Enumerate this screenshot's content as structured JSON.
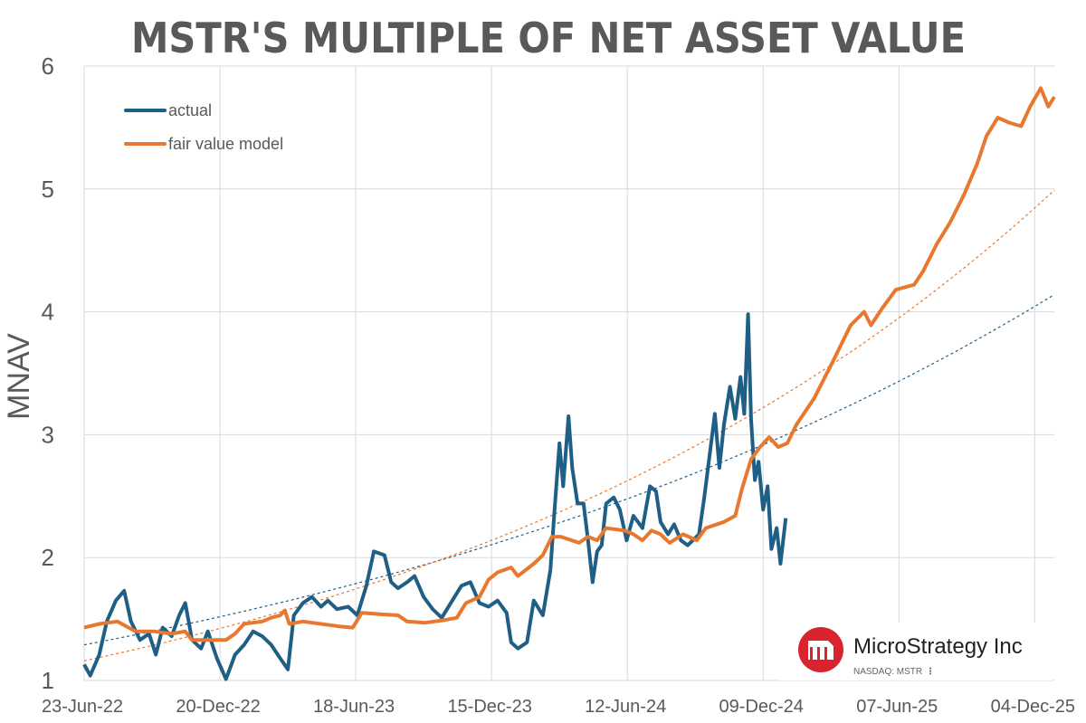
{
  "chart_data": {
    "type": "line",
    "title": "MSTR'S MULTIPLE OF NET ASSET VALUE",
    "xlabel": "",
    "ylabel": "MNAV",
    "xlim": [
      "2022-06-23",
      "2025-12-30"
    ],
    "ylim": [
      1,
      6
    ],
    "grid": true,
    "legend_position": "top-left",
    "x_ticks": [
      "2022-06-23",
      "2022-12-20",
      "2023-06-18",
      "2023-12-15",
      "2024-06-12",
      "2024-12-09",
      "2025-06-07",
      "2025-12-04"
    ],
    "x_tick_labels": [
      "23-Jun-22",
      "20-Dec-22",
      "18-Jun-23",
      "15-Dec-23",
      "12-Jun-24",
      "09-Dec-24",
      "07-Jun-25",
      "04-Dec-25"
    ],
    "y_ticks": [
      1,
      2,
      3,
      4,
      5,
      6
    ],
    "y_tick_labels": [
      "1",
      "2",
      "3",
      "4",
      "5",
      "6"
    ],
    "series": [
      {
        "name": "actual",
        "color": "#1f5f86",
        "points": [
          [
            "2022-06-23",
            1.13
          ],
          [
            "2022-07-01",
            1.04
          ],
          [
            "2022-07-13",
            1.21
          ],
          [
            "2022-07-23",
            1.48
          ],
          [
            "2022-08-04",
            1.65
          ],
          [
            "2022-08-15",
            1.73
          ],
          [
            "2022-08-24",
            1.48
          ],
          [
            "2022-09-05",
            1.33
          ],
          [
            "2022-09-17",
            1.38
          ],
          [
            "2022-09-26",
            1.21
          ],
          [
            "2022-10-05",
            1.43
          ],
          [
            "2022-10-17",
            1.36
          ],
          [
            "2022-10-27",
            1.53
          ],
          [
            "2022-11-04",
            1.63
          ],
          [
            "2022-11-13",
            1.33
          ],
          [
            "2022-11-25",
            1.26
          ],
          [
            "2022-12-04",
            1.4
          ],
          [
            "2022-12-16",
            1.18
          ],
          [
            "2022-12-28",
            1.01
          ],
          [
            "2023-01-09",
            1.21
          ],
          [
            "2023-01-21",
            1.29
          ],
          [
            "2023-02-02",
            1.4
          ],
          [
            "2023-02-14",
            1.36
          ],
          [
            "2023-02-26",
            1.29
          ],
          [
            "2023-03-10",
            1.18
          ],
          [
            "2023-03-20",
            1.09
          ],
          [
            "2023-03-28",
            1.53
          ],
          [
            "2023-04-09",
            1.63
          ],
          [
            "2023-04-21",
            1.68
          ],
          [
            "2023-05-03",
            1.6
          ],
          [
            "2023-05-12",
            1.65
          ],
          [
            "2023-05-24",
            1.58
          ],
          [
            "2023-06-08",
            1.6
          ],
          [
            "2023-06-20",
            1.53
          ],
          [
            "2023-07-02",
            1.77
          ],
          [
            "2023-07-12",
            2.05
          ],
          [
            "2023-07-26",
            2.02
          ],
          [
            "2023-08-04",
            1.8
          ],
          [
            "2023-08-13",
            1.75
          ],
          [
            "2023-08-25",
            1.8
          ],
          [
            "2023-09-04",
            1.85
          ],
          [
            "2023-09-16",
            1.68
          ],
          [
            "2023-09-28",
            1.58
          ],
          [
            "2023-10-10",
            1.51
          ],
          [
            "2023-10-22",
            1.63
          ],
          [
            "2023-11-05",
            1.77
          ],
          [
            "2023-11-17",
            1.8
          ],
          [
            "2023-11-29",
            1.63
          ],
          [
            "2023-12-11",
            1.6
          ],
          [
            "2023-12-23",
            1.65
          ],
          [
            "2024-01-04",
            1.55
          ],
          [
            "2024-01-10",
            1.31
          ],
          [
            "2024-01-19",
            1.26
          ],
          [
            "2024-01-31",
            1.31
          ],
          [
            "2024-02-09",
            1.65
          ],
          [
            "2024-02-21",
            1.53
          ],
          [
            "2024-03-02",
            1.9
          ],
          [
            "2024-03-07",
            2.34
          ],
          [
            "2024-03-14",
            2.93
          ],
          [
            "2024-03-19",
            2.58
          ],
          [
            "2024-03-26",
            3.15
          ],
          [
            "2024-03-31",
            2.73
          ],
          [
            "2024-04-07",
            2.44
          ],
          [
            "2024-04-15",
            2.44
          ],
          [
            "2024-04-21",
            2.14
          ],
          [
            "2024-04-27",
            1.8
          ],
          [
            "2024-05-03",
            2.05
          ],
          [
            "2024-05-09",
            2.1
          ],
          [
            "2024-05-15",
            2.44
          ],
          [
            "2024-05-25",
            2.49
          ],
          [
            "2024-06-02",
            2.39
          ],
          [
            "2024-06-11",
            2.14
          ],
          [
            "2024-06-20",
            2.34
          ],
          [
            "2024-07-02",
            2.24
          ],
          [
            "2024-07-12",
            2.58
          ],
          [
            "2024-07-20",
            2.54
          ],
          [
            "2024-07-26",
            2.29
          ],
          [
            "2024-08-05",
            2.19
          ],
          [
            "2024-08-13",
            2.27
          ],
          [
            "2024-08-22",
            2.14
          ],
          [
            "2024-08-31",
            2.1
          ],
          [
            "2024-09-15",
            2.19
          ],
          [
            "2024-09-22",
            2.49
          ],
          [
            "2024-09-30",
            2.88
          ],
          [
            "2024-10-06",
            3.17
          ],
          [
            "2024-10-12",
            2.73
          ],
          [
            "2024-10-18",
            3.08
          ],
          [
            "2024-10-26",
            3.39
          ],
          [
            "2024-11-02",
            3.13
          ],
          [
            "2024-11-09",
            3.47
          ],
          [
            "2024-11-14",
            3.17
          ],
          [
            "2024-11-19",
            3.98
          ],
          [
            "2024-11-23",
            3.13
          ],
          [
            "2024-11-28",
            2.63
          ],
          [
            "2024-12-03",
            2.78
          ],
          [
            "2024-12-09",
            2.39
          ],
          [
            "2024-12-15",
            2.58
          ],
          [
            "2024-12-20",
            2.07
          ],
          [
            "2024-12-27",
            2.24
          ],
          [
            "2025-01-01",
            1.95
          ],
          [
            "2025-01-08",
            2.32
          ]
        ],
        "trend": {
          "type": "exponential",
          "style": "dashed",
          "start": [
            "2022-06-23",
            1.29
          ],
          "end": [
            "2025-12-30",
            4.14
          ]
        }
      },
      {
        "name": "fair value model",
        "color": "#e8782f",
        "points": [
          [
            "2022-06-23",
            1.43
          ],
          [
            "2022-07-13",
            1.46
          ],
          [
            "2022-08-06",
            1.48
          ],
          [
            "2022-08-30",
            1.4
          ],
          [
            "2022-09-23",
            1.4
          ],
          [
            "2022-10-17",
            1.38
          ],
          [
            "2022-11-04",
            1.4
          ],
          [
            "2022-11-13",
            1.33
          ],
          [
            "2022-12-04",
            1.33
          ],
          [
            "2022-12-28",
            1.33
          ],
          [
            "2023-01-09",
            1.38
          ],
          [
            "2023-01-21",
            1.46
          ],
          [
            "2023-02-14",
            1.48
          ],
          [
            "2023-02-26",
            1.51
          ],
          [
            "2023-03-10",
            1.53
          ],
          [
            "2023-03-16",
            1.57
          ],
          [
            "2023-03-22",
            1.46
          ],
          [
            "2023-04-09",
            1.48
          ],
          [
            "2023-05-03",
            1.46
          ],
          [
            "2023-05-27",
            1.44
          ],
          [
            "2023-06-14",
            1.43
          ],
          [
            "2023-06-26",
            1.55
          ],
          [
            "2023-07-20",
            1.54
          ],
          [
            "2023-08-13",
            1.53
          ],
          [
            "2023-08-25",
            1.48
          ],
          [
            "2023-09-18",
            1.47
          ],
          [
            "2023-10-12",
            1.49
          ],
          [
            "2023-10-30",
            1.51
          ],
          [
            "2023-11-11",
            1.63
          ],
          [
            "2023-11-29",
            1.68
          ],
          [
            "2023-12-11",
            1.82
          ],
          [
            "2023-12-23",
            1.88
          ],
          [
            "2024-01-10",
            1.92
          ],
          [
            "2024-01-19",
            1.85
          ],
          [
            "2024-02-09",
            1.95
          ],
          [
            "2024-02-21",
            2.02
          ],
          [
            "2024-03-04",
            2.17
          ],
          [
            "2024-03-16",
            2.17
          ],
          [
            "2024-04-09",
            2.12
          ],
          [
            "2024-04-21",
            2.17
          ],
          [
            "2024-05-03",
            2.14
          ],
          [
            "2024-05-15",
            2.24
          ],
          [
            "2024-06-08",
            2.22
          ],
          [
            "2024-06-20",
            2.19
          ],
          [
            "2024-07-02",
            2.14
          ],
          [
            "2024-07-14",
            2.22
          ],
          [
            "2024-07-26",
            2.19
          ],
          [
            "2024-08-07",
            2.12
          ],
          [
            "2024-08-25",
            2.19
          ],
          [
            "2024-09-12",
            2.14
          ],
          [
            "2024-09-24",
            2.24
          ],
          [
            "2024-10-18",
            2.29
          ],
          [
            "2024-11-02",
            2.34
          ],
          [
            "2024-11-11",
            2.56
          ],
          [
            "2024-11-23",
            2.8
          ],
          [
            "2024-12-05",
            2.9
          ],
          [
            "2024-12-17",
            2.98
          ],
          [
            "2024-12-29",
            2.9
          ],
          [
            "2025-01-10",
            2.93
          ],
          [
            "2025-01-22",
            3.08
          ],
          [
            "2025-02-15",
            3.3
          ],
          [
            "2025-03-11",
            3.59
          ],
          [
            "2025-04-04",
            3.89
          ],
          [
            "2025-04-22",
            4.0
          ],
          [
            "2025-05-01",
            3.89
          ],
          [
            "2025-05-16",
            4.03
          ],
          [
            "2025-06-03",
            4.18
          ],
          [
            "2025-06-27",
            4.22
          ],
          [
            "2025-07-09",
            4.33
          ],
          [
            "2025-07-27",
            4.55
          ],
          [
            "2025-08-14",
            4.73
          ],
          [
            "2025-09-01",
            4.95
          ],
          [
            "2025-09-19",
            5.21
          ],
          [
            "2025-10-01",
            5.43
          ],
          [
            "2025-10-16",
            5.58
          ],
          [
            "2025-10-31",
            5.54
          ],
          [
            "2025-11-16",
            5.51
          ],
          [
            "2025-11-28",
            5.67
          ],
          [
            "2025-12-12",
            5.82
          ],
          [
            "2025-12-22",
            5.67
          ],
          [
            "2025-12-30",
            5.75
          ]
        ],
        "trend": {
          "type": "exponential",
          "style": "dashed",
          "start": [
            "2022-06-23",
            1.16
          ],
          "end": [
            "2025-12-30",
            4.99
          ]
        }
      }
    ]
  },
  "logo": {
    "company": "MicroStrategy Inc",
    "ticker": "NASDAQ: MSTR",
    "more_icon": "vertical-ellipsis-icon",
    "brand_color": "#d9232e"
  },
  "colors": {
    "text": "#595959",
    "grid": "#d9d9d9"
  }
}
